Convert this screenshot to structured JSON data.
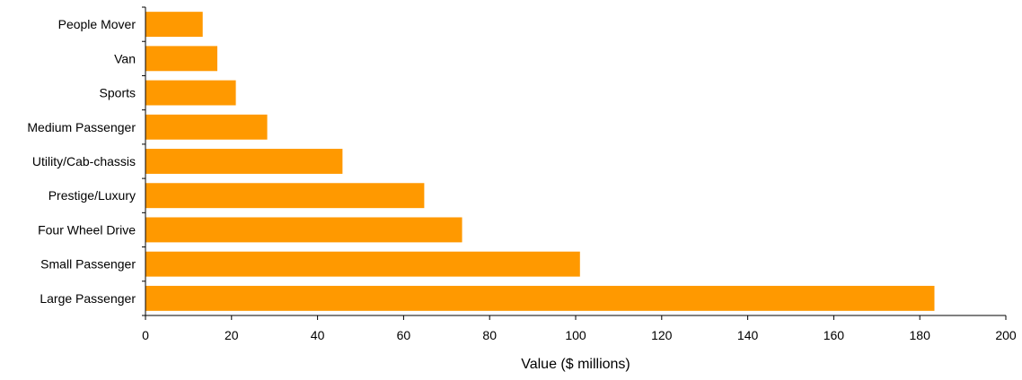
{
  "chart_data": {
    "type": "bar",
    "orientation": "horizontal",
    "categories": [
      "People Mover",
      "Van",
      "Sports",
      "Medium Passenger",
      "Utility/Cab-chassis",
      "Prestige/Luxury",
      "Four Wheel Drive",
      "Small Passenger",
      "Large Passenger"
    ],
    "values": [
      13.3,
      16.7,
      21.0,
      28.3,
      45.8,
      64.8,
      73.6,
      101.0,
      183.4
    ],
    "title": "",
    "xlabel": "Value ($ millions)",
    "ylabel": "",
    "xlim": [
      0,
      200
    ],
    "xticks": [
      0,
      20,
      40,
      60,
      80,
      100,
      120,
      140,
      160,
      180,
      200
    ],
    "grid": false,
    "legend": "none",
    "bar_color": "#FF9900"
  }
}
